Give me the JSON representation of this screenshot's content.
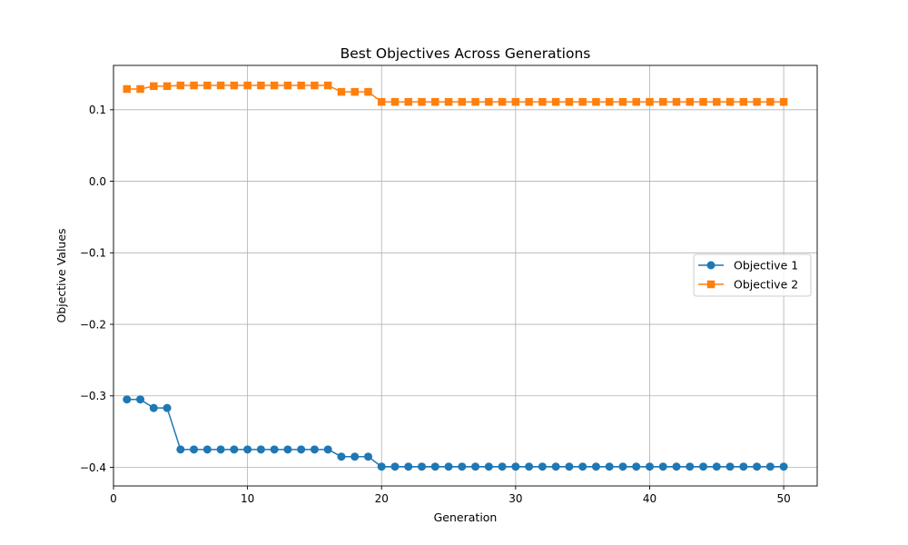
{
  "chart_data": {
    "type": "line",
    "title": "Best Objectives Across Generations",
    "xlabel": "Generation",
    "ylabel": "Objective Values",
    "xlim": [
      0,
      52.5
    ],
    "ylim": [
      -0.426,
      0.162
    ],
    "xticks": [
      0,
      10,
      20,
      30,
      40,
      50
    ],
    "yticks": [
      -0.4,
      -0.3,
      -0.2,
      -0.1,
      0.0,
      0.1
    ],
    "xtick_labels": [
      "0",
      "10",
      "20",
      "30",
      "40",
      "50"
    ],
    "ytick_labels": [
      "−0.4",
      "−0.3",
      "−0.2",
      "−0.1",
      "0.0",
      "0.1"
    ],
    "grid": true,
    "legend_position": "center-right",
    "x": [
      1,
      2,
      3,
      4,
      5,
      6,
      7,
      8,
      9,
      10,
      11,
      12,
      13,
      14,
      15,
      16,
      17,
      18,
      19,
      20,
      21,
      22,
      23,
      24,
      25,
      26,
      27,
      28,
      29,
      30,
      31,
      32,
      33,
      34,
      35,
      36,
      37,
      38,
      39,
      40,
      41,
      42,
      43,
      44,
      45,
      46,
      47,
      48,
      49,
      50
    ],
    "series": [
      {
        "name": "Objective 1",
        "color": "#1f77b4",
        "marker": "circle",
        "values": [
          -0.305,
          -0.305,
          -0.317,
          -0.317,
          -0.375,
          -0.375,
          -0.375,
          -0.375,
          -0.375,
          -0.375,
          -0.375,
          -0.375,
          -0.375,
          -0.375,
          -0.375,
          -0.375,
          -0.385,
          -0.385,
          -0.385,
          -0.399,
          -0.399,
          -0.399,
          -0.399,
          -0.399,
          -0.399,
          -0.399,
          -0.399,
          -0.399,
          -0.399,
          -0.399,
          -0.399,
          -0.399,
          -0.399,
          -0.399,
          -0.399,
          -0.399,
          -0.399,
          -0.399,
          -0.399,
          -0.399,
          -0.399,
          -0.399,
          -0.399,
          -0.399,
          -0.399,
          -0.399,
          -0.399,
          -0.399,
          -0.399,
          -0.399
        ]
      },
      {
        "name": "Objective 2",
        "color": "#ff7f0e",
        "marker": "square",
        "values": [
          0.129,
          0.129,
          0.133,
          0.133,
          0.134,
          0.134,
          0.134,
          0.134,
          0.134,
          0.134,
          0.134,
          0.134,
          0.134,
          0.134,
          0.134,
          0.134,
          0.125,
          0.125,
          0.125,
          0.111,
          0.111,
          0.111,
          0.111,
          0.111,
          0.111,
          0.111,
          0.111,
          0.111,
          0.111,
          0.111,
          0.111,
          0.111,
          0.111,
          0.111,
          0.111,
          0.111,
          0.111,
          0.111,
          0.111,
          0.111,
          0.111,
          0.111,
          0.111,
          0.111,
          0.111,
          0.111,
          0.111,
          0.111,
          0.111,
          0.111
        ]
      }
    ]
  }
}
